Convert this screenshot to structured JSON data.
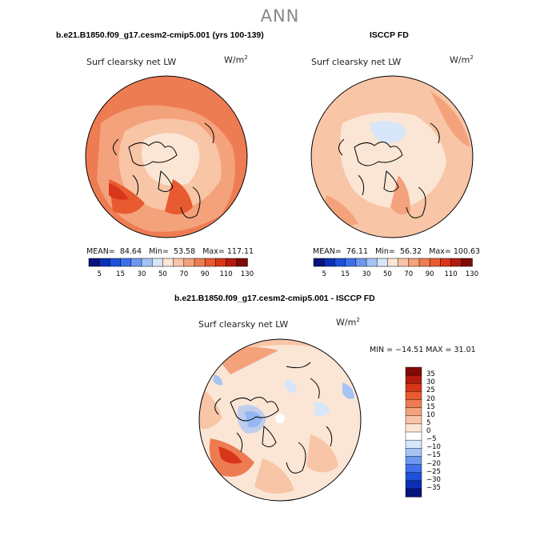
{
  "title": "ANN",
  "panels": [
    {
      "name": "model",
      "title": "b.e21.B1850.f09_g17.cesm2-cmip5.001 (yrs 100-139)",
      "variable": "Surf clearsky net LW",
      "units_base": "W/m",
      "units_exp": "2",
      "stats": {
        "mean_label": "MEAN=",
        "mean": "84.64",
        "min_label": "Min=",
        "min": "53.58",
        "max_label": "Max=",
        "max": "117.11"
      }
    },
    {
      "name": "obs",
      "title": "ISCCP FD",
      "variable": "Surf clearsky net LW",
      "units_base": "W/m",
      "units_exp": "2",
      "stats": {
        "mean_label": "MEAN=",
        "mean": "76.11",
        "min_label": "Min=",
        "min": "56.32",
        "max_label": "Max=",
        "max": "100.63"
      }
    },
    {
      "name": "diff",
      "title": "b.e21.B1850.f09_g17.cesm2-cmip5.001 - ISCCP FD",
      "variable": "Surf clearsky net LW",
      "units_base": "W/m",
      "units_exp": "2",
      "stats_text": "MIN = −14.51  MAX =   31.01"
    }
  ],
  "colorbar_abs": {
    "colors": [
      "#08137e",
      "#0a2fb5",
      "#1e50d9",
      "#3f70ea",
      "#6d97f0",
      "#a5c3f5",
      "#d7e6f9",
      "#fbe6d6",
      "#f8c5a6",
      "#f3a27b",
      "#ee7c52",
      "#e85a30",
      "#d8361a",
      "#b21c0e",
      "#800a06"
    ],
    "labels": [
      "5",
      "15",
      "30",
      "50",
      "70",
      "90",
      "110",
      "130"
    ]
  },
  "colorbar_diff": {
    "colors": [
      "#800a06",
      "#b21c0e",
      "#d8361a",
      "#e85a30",
      "#ee7c52",
      "#f3a27b",
      "#f8c5a6",
      "#fbe6d6",
      "#ffffff",
      "#d7e6f9",
      "#a5c3f5",
      "#6d97f0",
      "#3f70ea",
      "#1e50d9",
      "#0a2fb5",
      "#08137e"
    ],
    "labels": [
      "35",
      "30",
      "25",
      "20",
      "15",
      "10",
      "5",
      "0",
      "−5",
      "−10",
      "−15",
      "−20",
      "−25",
      "−30",
      "−35"
    ]
  }
}
